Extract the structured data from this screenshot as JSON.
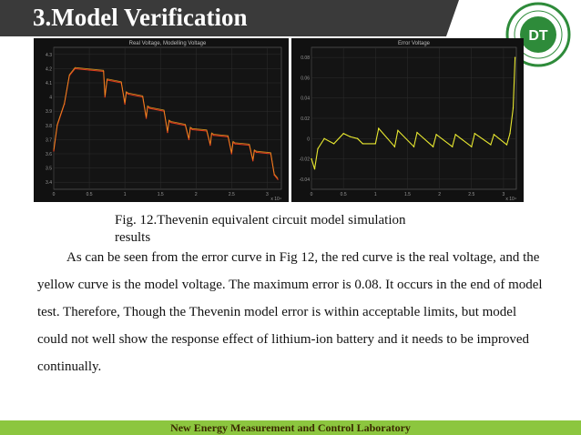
{
  "slide": {
    "title": "3.Model Verification",
    "caption_line1": "Fig. 12.Thevenin equivalent circuit model simulation",
    "caption_line2": "results",
    "paragraph": "As  can be seen from the error curve in Fig 12, the red curve is the real  voltage, and the yellow curve is the model voltage. The maximum error is 0.08. It occurs in the end of model test. Therefore, Though the Thevenin model error is within acceptable limits, but model could not well show the response effect of lithium-ion battery and it needs to be improved continually.",
    "footer": "New Energy Measurement and Control Laboratory"
  },
  "logo": {
    "center_text": "DT",
    "color": "#2e8b3a"
  },
  "colors": {
    "title_bar": "#3a3a3a",
    "footer": "#8cc63f",
    "real_voltage": "#e03a1e",
    "model_voltage": "#f0a020",
    "error_curve": "#e8e830"
  },
  "chart_data": [
    {
      "type": "line",
      "title": "Real Voltage, Modelling Voltage",
      "xlabel": "",
      "ylabel": "",
      "x_ticks": [
        "0",
        "0.5",
        "1",
        "1.5",
        "2",
        "2.5",
        "3"
      ],
      "x_exponent": "x 10⁴",
      "y_ticks": [
        "4.3",
        "4.2",
        "4.1",
        "4",
        "3.9",
        "3.8",
        "3.7",
        "3.6",
        "3.5",
        "3.4"
      ],
      "ylim": [
        3.35,
        4.35
      ],
      "xlim": [
        0,
        3.2
      ],
      "series": [
        {
          "color": "#e03a1e",
          "x": [
            0,
            0.05,
            0.15,
            0.22,
            0.3,
            0.5,
            0.7,
            0.72,
            0.75,
            0.95,
            1.0,
            1.02,
            1.05,
            1.25,
            1.3,
            1.32,
            1.35,
            1.55,
            1.6,
            1.62,
            1.65,
            1.85,
            1.9,
            1.92,
            1.95,
            2.15,
            2.2,
            2.22,
            2.25,
            2.45,
            2.5,
            2.52,
            2.55,
            2.75,
            2.8,
            2.82,
            2.85,
            3.05,
            3.1,
            3.15
          ],
          "y": [
            3.62,
            3.8,
            3.95,
            4.15,
            4.2,
            4.19,
            4.18,
            4.0,
            4.12,
            4.1,
            3.95,
            4.03,
            4.02,
            4.0,
            3.85,
            3.93,
            3.92,
            3.9,
            3.75,
            3.83,
            3.82,
            3.8,
            3.7,
            3.78,
            3.77,
            3.76,
            3.66,
            3.74,
            3.73,
            3.72,
            3.6,
            3.68,
            3.67,
            3.66,
            3.55,
            3.62,
            3.61,
            3.6,
            3.45,
            3.42
          ]
        }
      ]
    },
    {
      "type": "line",
      "title": "Error Voltage",
      "xlabel": "",
      "ylabel": "",
      "x_ticks": [
        "0",
        "0.5",
        "1",
        "1.5",
        "2",
        "2.5",
        "3"
      ],
      "x_exponent": "x 10⁴",
      "y_ticks": [
        "0.08",
        "0.06",
        "0.04",
        "0.02",
        "0",
        "-0.02",
        "-0.04"
      ],
      "ylim": [
        -0.05,
        0.09
      ],
      "xlim": [
        0,
        3.2
      ],
      "series": [
        {
          "color": "#e8e830",
          "x": [
            0,
            0.05,
            0.1,
            0.2,
            0.35,
            0.5,
            0.6,
            0.72,
            0.8,
            1.0,
            1.05,
            1.3,
            1.35,
            1.6,
            1.65,
            1.9,
            1.95,
            2.2,
            2.25,
            2.5,
            2.55,
            2.8,
            2.85,
            3.05,
            3.1,
            3.15,
            3.18
          ],
          "y": [
            -0.02,
            -0.03,
            -0.01,
            0.0,
            -0.005,
            0.005,
            0.002,
            0.0,
            -0.005,
            -0.005,
            0.01,
            -0.008,
            0.008,
            -0.008,
            0.006,
            -0.008,
            0.004,
            -0.008,
            0.004,
            -0.008,
            0.005,
            -0.006,
            0.004,
            -0.006,
            0.005,
            0.03,
            0.08
          ]
        }
      ]
    }
  ]
}
